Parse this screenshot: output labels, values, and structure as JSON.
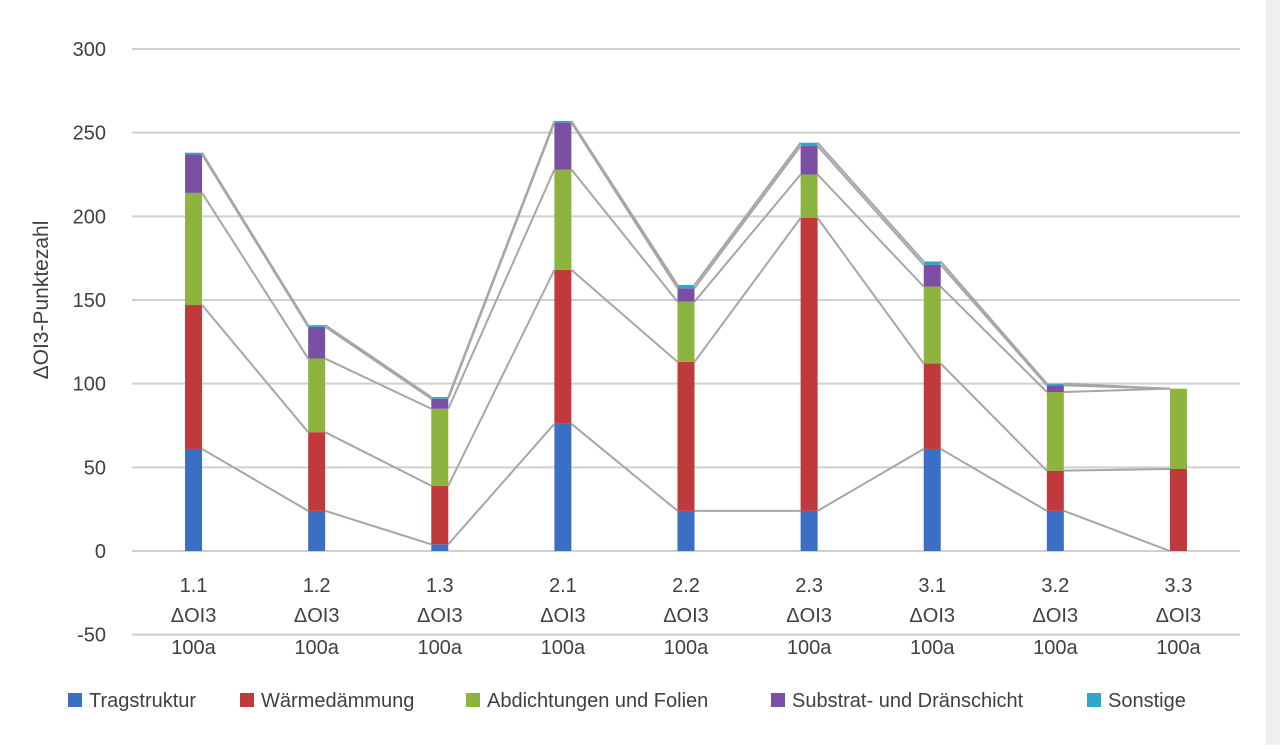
{
  "chart_data": {
    "type": "bar",
    "stacked": true,
    "ylabel": "ΔOI3-Punktezahl",
    "ylim": [
      -50,
      300
    ],
    "yticks": [
      -50,
      0,
      50,
      100,
      150,
      200,
      250,
      300
    ],
    "grid": true,
    "legend_position": "bottom",
    "categories": [
      {
        "id": "1.1",
        "line2": "ΔOI3",
        "line3": "100a"
      },
      {
        "id": "1.2",
        "line2": "ΔOI3",
        "line3": "100a"
      },
      {
        "id": "1.3",
        "line2": "ΔOI3",
        "line3": "100a"
      },
      {
        "id": "2.1",
        "line2": "ΔOI3",
        "line3": "100a"
      },
      {
        "id": "2.2",
        "line2": "ΔOI3",
        "line3": "100a"
      },
      {
        "id": "2.3",
        "line2": "ΔOI3",
        "line3": "100a"
      },
      {
        "id": "3.1",
        "line2": "ΔOI3",
        "line3": "100a"
      },
      {
        "id": "3.2",
        "line2": "ΔOI3",
        "line3": "100a"
      },
      {
        "id": "3.3",
        "line2": "ΔOI3",
        "line3": "100a"
      }
    ],
    "series": [
      {
        "name": "Tragstruktur",
        "color": "#3a6fc4",
        "values": [
          61,
          24,
          4,
          76,
          24,
          24,
          61,
          24,
          0
        ]
      },
      {
        "name": "Wärmedämmung",
        "color": "#c0393b",
        "values": [
          86,
          47,
          35,
          92,
          89,
          175,
          51,
          24,
          49
        ]
      },
      {
        "name": "Abdichtungen und Folien",
        "color": "#8db43e",
        "values": [
          67,
          44,
          46,
          60,
          36,
          26,
          46,
          47,
          48
        ]
      },
      {
        "name": "Substrat- und Dränschicht",
        "color": "#7b4fa3",
        "values": [
          23,
          19,
          6,
          28,
          8,
          17,
          13,
          4,
          0
        ]
      },
      {
        "name": "Sonstige",
        "color": "#2ea7c9",
        "values": [
          1,
          1,
          1,
          1,
          2,
          2,
          2,
          1,
          0
        ]
      }
    ],
    "series_lines": true
  }
}
